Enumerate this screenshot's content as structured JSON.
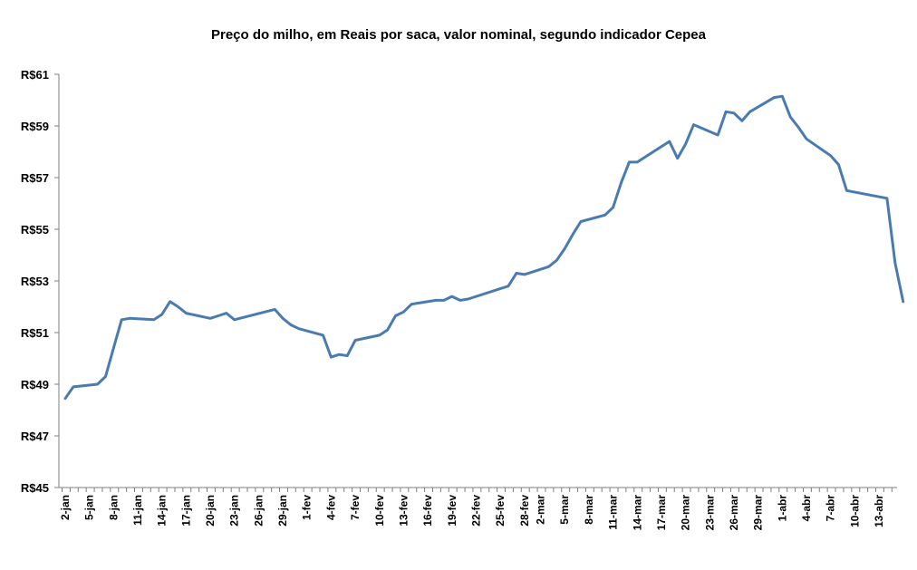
{
  "chart_data": {
    "type": "line",
    "title": "Preço do milho,  em Reais por saca, valor nominal, segundo indicador Cepea",
    "xlabel": "",
    "ylabel": "",
    "ylim": [
      45,
      61
    ],
    "y_tick_labels": [
      "R$61",
      "R$59",
      "R$57",
      "R$55",
      "R$53",
      "R$51",
      "R$49",
      "R$47",
      "R$45"
    ],
    "x_tick_labels": [
      "2-jan",
      "5-jan",
      "8-jan",
      "11-jan",
      "14-jan",
      "17-jan",
      "20-jan",
      "23-jan",
      "26-jan",
      "29-jan",
      "1-fev",
      "4-fev",
      "7-fev",
      "10-fev",
      "13-fev",
      "16-fev",
      "19-fev",
      "22-fev",
      "25-fev",
      "28-fev",
      "2-mar",
      "5-mar",
      "8-mar",
      "11-mar",
      "14-mar",
      "17-mar",
      "20-mar",
      "23-mar",
      "26-mar",
      "29-mar",
      "1-abr",
      "4-abr",
      "7-abr",
      "10-abr",
      "13-abr"
    ],
    "grid": false,
    "legend": "none",
    "line_color": "#4a7bb0",
    "series": [
      {
        "x": [
          "2-jan",
          "3-jan",
          "6-jan",
          "7-jan",
          "8-jan",
          "9-jan",
          "10-jan",
          "13-jan",
          "14-jan",
          "15-jan",
          "16-jan",
          "17-jan",
          "20-jan",
          "21-jan",
          "22-jan",
          "23-jan",
          "28-jan",
          "29-jan",
          "30-jan",
          "31-jan",
          "3-fev",
          "4-fev",
          "5-fev",
          "6-fev",
          "7-fev",
          "10-fev",
          "11-fev",
          "12-fev",
          "13-fev",
          "14-fev",
          "17-fev",
          "18-fev",
          "19-fev",
          "20-fev",
          "21-fev",
          "26-fev",
          "27-fev",
          "28-fev",
          "3-mar",
          "4-mar",
          "5-mar",
          "6-mar",
          "7-mar",
          "10-mar",
          "11-mar",
          "12-mar",
          "13-mar",
          "14-mar",
          "17-mar",
          "18-mar",
          "19-mar",
          "20-mar",
          "21-mar",
          "24-mar",
          "25-mar",
          "26-mar",
          "27-mar",
          "28-mar",
          "31-mar",
          "1-abr",
          "2-abr",
          "3-abr",
          "4-abr",
          "7-abr",
          "8-abr",
          "9-abr",
          "14-abr",
          "15-abr",
          "16-abr"
        ],
        "values": [
          48.45,
          48.9,
          49.0,
          49.3,
          50.4,
          51.5,
          51.55,
          51.5,
          51.7,
          52.2,
          52.0,
          51.75,
          51.55,
          51.65,
          51.75,
          51.5,
          51.9,
          51.55,
          51.3,
          51.15,
          50.9,
          50.05,
          50.15,
          50.1,
          50.7,
          50.9,
          51.1,
          51.65,
          51.8,
          52.1,
          52.25,
          52.25,
          52.4,
          52.25,
          52.3,
          52.8,
          53.3,
          53.25,
          53.55,
          53.8,
          54.25,
          54.8,
          55.3,
          55.55,
          55.85,
          56.8,
          57.6,
          57.6,
          58.2,
          58.4,
          57.75,
          58.3,
          59.05,
          58.65,
          59.55,
          59.5,
          59.2,
          59.55,
          60.1,
          60.15,
          59.35,
          58.95,
          58.5,
          57.85,
          57.5,
          56.5,
          56.2,
          53.7,
          52.2
        ]
      }
    ]
  }
}
